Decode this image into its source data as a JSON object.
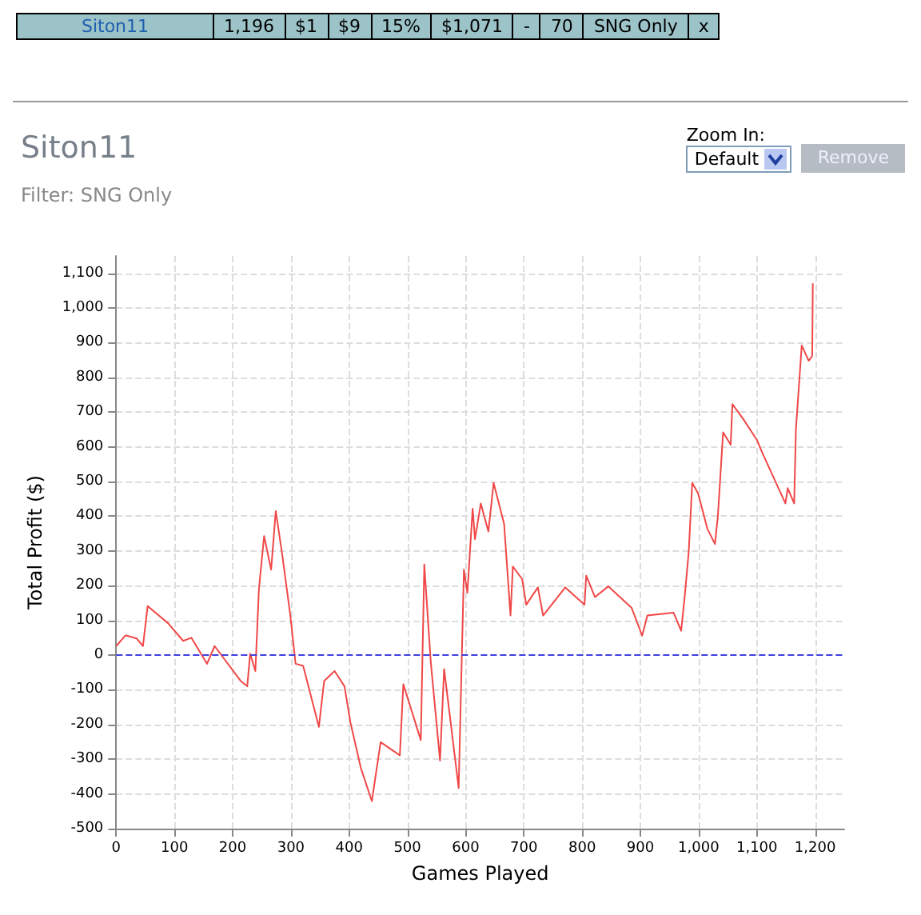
{
  "chart_data": {
    "type": "line",
    "title": "Siton11",
    "subtitle": "Filter: SNG Only",
    "xlabel": "Games Played",
    "ylabel": "Total Profit ($)",
    "annotations": [
      "Siton11",
      "1,196",
      "$1",
      "$9",
      "15%",
      "$1,071",
      "-",
      "70",
      "SNG Only",
      "x",
      "Zoom In:",
      "Default",
      "Remove"
    ],
    "series": [
      {
        "color": "#f04848",
        "x": [
          0,
          16,
          35,
          46,
          54,
          89,
          115,
          129,
          156,
          169,
          214,
          225,
          230,
          239,
          245,
          254,
          266,
          274,
          285,
          299,
          308,
          321,
          348,
          357,
          375,
          392,
          402,
          420,
          439,
          454,
          487,
          493,
          523,
          529,
          540,
          556,
          563,
          588,
          597,
          603,
          612,
          616,
          626,
          639,
          648,
          666,
          677,
          681,
          697,
          704,
          724,
          733,
          771,
          804,
          807,
          822,
          845,
          885,
          903,
          912,
          957,
          970,
          976,
          983,
          989,
          999,
          1015,
          1028,
          1033,
          1042,
          1055,
          1058,
          1077,
          1100,
          1109,
          1149,
          1153,
          1164,
          1167,
          1177,
          1189,
          1195,
          1196
        ],
        "values": [
          26,
          57,
          48,
          26,
          141,
          92,
          41,
          50,
          -25,
          26,
          -75,
          -90,
          4,
          -46,
          189,
          343,
          246,
          415,
          290,
          114,
          -25,
          -31,
          -207,
          -75,
          -46,
          -90,
          -193,
          -325,
          -421,
          -251,
          -289,
          -84,
          -245,
          261,
          -18,
          -304,
          -40,
          -383,
          246,
          180,
          422,
          334,
          437,
          356,
          496,
          378,
          114,
          255,
          219,
          145,
          195,
          114,
          195,
          145,
          229,
          167,
          198,
          136,
          56,
          114,
          122,
          70,
          167,
          298,
          496,
          466,
          364,
          320,
          400,
          642,
          606,
          723,
          679,
          620,
          584,
          437,
          481,
          437,
          650,
          892,
          848,
          862,
          1071
        ]
      }
    ],
    "xlim": [
      0,
      1250
    ],
    "xticks": [
      0,
      100,
      200,
      300,
      400,
      500,
      600,
      700,
      800,
      900,
      {
        "value": 1000,
        "label": "1,000"
      },
      {
        "value": 1100,
        "label": "1,100"
      },
      {
        "value": 1200,
        "label": "1,200"
      }
    ],
    "ylim": [
      -500,
      1150
    ],
    "yticks": [
      -500,
      -400,
      -300,
      -200,
      -100,
      0,
      100,
      200,
      300,
      400,
      500,
      600,
      700,
      800,
      900,
      {
        "value": 1000,
        "label": "1,000"
      },
      {
        "value": 1100,
        "label": "1,100"
      }
    ],
    "grid": true,
    "marker": "none",
    "line_style": "solid",
    "ref_lines": [
      {
        "axis": "y",
        "value": 0,
        "color": "#4040e0",
        "line_style": "dashed"
      }
    ]
  }
}
